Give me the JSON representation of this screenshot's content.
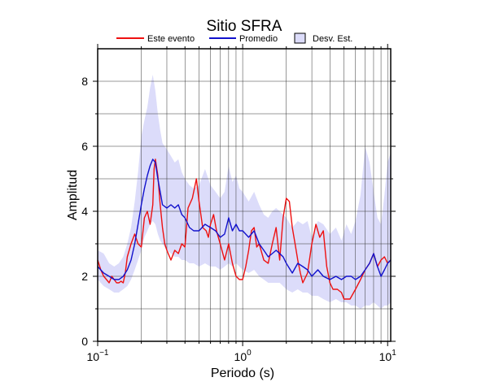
{
  "chart_data": {
    "type": "line",
    "title": "Sitio SFRA",
    "xlabel": "Periodo (s)",
    "ylabel": "Amplitud",
    "xscale": "log",
    "xlim": [
      0.1,
      10.5
    ],
    "ylim": [
      0,
      9
    ],
    "grid": true,
    "legend_position": "top-center",
    "x_ticks": [
      {
        "value": 0.1,
        "base": "10",
        "exp": "−1"
      },
      {
        "value": 1,
        "base": "10",
        "exp": "0"
      },
      {
        "value": 10,
        "base": "10",
        "exp": "1"
      }
    ],
    "y_ticks": [
      0,
      2,
      4,
      6,
      8
    ],
    "legend": {
      "event": "Este evento",
      "average": "Promedio",
      "std": "Desv. Est."
    },
    "colors": {
      "event": "#ee1111",
      "average": "#1111cc",
      "band_fill": "#dcdcfa",
      "band_stroke": "#000000"
    },
    "series": [
      {
        "name": "Este evento",
        "x": [
          0.1,
          0.105,
          0.11,
          0.115,
          0.12,
          0.125,
          0.13,
          0.135,
          0.14,
          0.145,
          0.15,
          0.155,
          0.16,
          0.17,
          0.18,
          0.19,
          0.2,
          0.21,
          0.22,
          0.23,
          0.24,
          0.245,
          0.25,
          0.26,
          0.27,
          0.28,
          0.29,
          0.3,
          0.32,
          0.34,
          0.36,
          0.38,
          0.4,
          0.42,
          0.45,
          0.48,
          0.5,
          0.53,
          0.56,
          0.58,
          0.6,
          0.63,
          0.66,
          0.7,
          0.75,
          0.8,
          0.85,
          0.9,
          0.95,
          1.0,
          1.05,
          1.1,
          1.15,
          1.2,
          1.25,
          1.3,
          1.4,
          1.5,
          1.6,
          1.7,
          1.8,
          1.9,
          2.0,
          2.1,
          2.2,
          2.3,
          2.4,
          2.5,
          2.6,
          2.8,
          3.0,
          3.2,
          3.4,
          3.6,
          3.8,
          4.0,
          4.2,
          4.5,
          4.8,
          5.0,
          5.5,
          6.0,
          6.5,
          7.0,
          7.5,
          8.0,
          8.5,
          9.0,
          9.5,
          10.0,
          10.5
        ],
        "y": [
          2.5,
          2.2,
          2.0,
          1.9,
          1.8,
          2.0,
          1.9,
          1.8,
          1.8,
          1.85,
          1.8,
          2.1,
          2.6,
          3.0,
          3.3,
          3.0,
          2.9,
          3.8,
          4.0,
          3.6,
          4.2,
          5.3,
          5.6,
          5.1,
          4.2,
          3.5,
          3.0,
          2.8,
          2.5,
          2.8,
          2.7,
          3.0,
          2.9,
          4.1,
          4.4,
          5.0,
          4.3,
          3.5,
          3.4,
          3.2,
          3.6,
          3.9,
          3.4,
          3.0,
          2.5,
          3.0,
          2.4,
          2.0,
          1.9,
          1.9,
          2.3,
          2.8,
          3.4,
          3.5,
          2.9,
          3.0,
          2.5,
          2.4,
          3.0,
          3.5,
          2.5,
          3.8,
          4.4,
          4.3,
          3.5,
          3.0,
          2.5,
          2.1,
          1.8,
          2.1,
          3.0,
          3.6,
          3.2,
          3.4,
          2.3,
          1.8,
          1.6,
          1.6,
          1.5,
          1.3,
          1.3,
          1.6,
          1.9,
          2.2,
          2.4,
          2.7,
          2.3,
          2.5,
          2.6,
          2.4,
          2.5
        ]
      },
      {
        "name": "Promedio",
        "x": [
          0.1,
          0.11,
          0.12,
          0.13,
          0.14,
          0.15,
          0.16,
          0.17,
          0.18,
          0.19,
          0.2,
          0.21,
          0.22,
          0.23,
          0.24,
          0.25,
          0.26,
          0.27,
          0.28,
          0.3,
          0.32,
          0.34,
          0.36,
          0.38,
          0.4,
          0.43,
          0.46,
          0.5,
          0.55,
          0.6,
          0.65,
          0.7,
          0.75,
          0.8,
          0.85,
          0.9,
          0.95,
          1.0,
          1.1,
          1.2,
          1.3,
          1.4,
          1.5,
          1.6,
          1.7,
          1.8,
          1.9,
          2.0,
          2.2,
          2.4,
          2.6,
          2.8,
          3.0,
          3.3,
          3.6,
          4.0,
          4.4,
          4.8,
          5.2,
          5.6,
          6.0,
          6.5,
          7.0,
          7.5,
          8.0,
          8.5,
          9.0,
          9.5,
          10.0,
          10.5
        ],
        "y": [
          2.3,
          2.1,
          2.0,
          1.9,
          1.9,
          2.0,
          2.2,
          2.5,
          3.0,
          3.6,
          4.2,
          4.7,
          5.1,
          5.4,
          5.6,
          5.5,
          5.0,
          4.6,
          4.2,
          4.1,
          4.2,
          4.1,
          4.2,
          3.9,
          3.8,
          3.5,
          3.4,
          3.4,
          3.6,
          3.5,
          3.4,
          3.2,
          3.3,
          3.8,
          3.4,
          3.6,
          3.4,
          3.4,
          3.2,
          3.4,
          3.0,
          2.8,
          2.6,
          2.7,
          2.8,
          2.7,
          2.6,
          2.4,
          2.1,
          2.4,
          2.3,
          2.2,
          2.0,
          2.2,
          2.0,
          1.9,
          2.0,
          1.9,
          2.0,
          2.0,
          1.9,
          2.0,
          2.2,
          2.4,
          2.7,
          2.3,
          2.0,
          2.2,
          2.4,
          2.5
        ]
      }
    ],
    "band": {
      "name": "Desv. Est.",
      "x": [
        0.1,
        0.11,
        0.12,
        0.13,
        0.14,
        0.15,
        0.16,
        0.17,
        0.18,
        0.19,
        0.2,
        0.21,
        0.22,
        0.23,
        0.24,
        0.25,
        0.26,
        0.27,
        0.28,
        0.3,
        0.32,
        0.34,
        0.36,
        0.38,
        0.4,
        0.43,
        0.46,
        0.5,
        0.55,
        0.6,
        0.65,
        0.7,
        0.75,
        0.8,
        0.85,
        0.9,
        0.95,
        1.0,
        1.1,
        1.2,
        1.3,
        1.4,
        1.5,
        1.6,
        1.7,
        1.8,
        1.9,
        2.0,
        2.2,
        2.4,
        2.6,
        2.8,
        3.0,
        3.3,
        3.6,
        4.0,
        4.4,
        4.8,
        5.2,
        5.6,
        6.0,
        6.5,
        7.0,
        7.5,
        8.0,
        8.5,
        9.0,
        9.5,
        10.0,
        10.5
      ],
      "upper": [
        2.8,
        2.7,
        2.4,
        2.3,
        2.4,
        2.6,
        3.0,
        3.5,
        4.3,
        5.2,
        6.3,
        6.8,
        7.2,
        7.8,
        8.2,
        7.7,
        7.0,
        6.5,
        6.1,
        5.9,
        5.7,
        5.5,
        5.6,
        5.2,
        5.0,
        4.8,
        4.7,
        4.8,
        5.3,
        4.8,
        4.6,
        4.4,
        4.6,
        5.4,
        4.9,
        5.1,
        4.7,
        4.6,
        4.3,
        4.6,
        4.2,
        3.9,
        3.8,
        4.0,
        4.1,
        4.0,
        3.9,
        3.8,
        3.5,
        3.7,
        3.6,
        3.7,
        3.2,
        3.7,
        3.6,
        3.3,
        3.5,
        3.1,
        3.6,
        3.3,
        3.7,
        4.5,
        6.0,
        5.5,
        4.6,
        3.8,
        3.6,
        4.5,
        5.5,
        5.8
      ],
      "lower": [
        1.9,
        1.7,
        1.6,
        1.5,
        1.5,
        1.6,
        1.7,
        1.9,
        2.2,
        2.5,
        2.8,
        3.2,
        3.4,
        3.6,
        3.7,
        3.6,
        3.3,
        3.1,
        3.0,
        2.8,
        2.7,
        2.6,
        2.6,
        2.5,
        2.5,
        2.4,
        2.4,
        2.3,
        2.4,
        2.3,
        2.3,
        2.2,
        2.3,
        2.4,
        2.3,
        2.4,
        2.3,
        2.2,
        2.1,
        2.2,
        2.0,
        1.9,
        1.8,
        1.8,
        1.8,
        1.8,
        1.7,
        1.6,
        1.5,
        1.6,
        1.5,
        1.5,
        1.4,
        1.4,
        1.3,
        1.2,
        1.3,
        1.2,
        1.2,
        1.1,
        1.1,
        1.0,
        1.1,
        1.1,
        1.2,
        1.1,
        1.0,
        1.1,
        1.1,
        1.2
      ]
    }
  }
}
